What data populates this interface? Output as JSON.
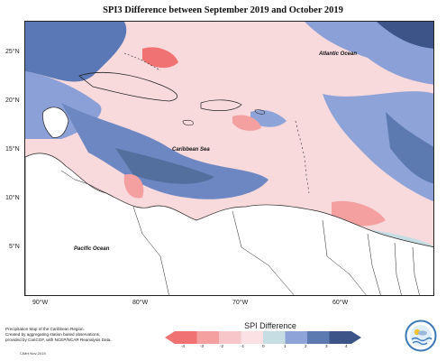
{
  "title": "SPI3 Difference between September 2019 and October 2019",
  "axes": {
    "lat_ticks": [
      "25°N",
      "20°N",
      "15°N",
      "10°N",
      "5°N"
    ],
    "lon_ticks": [
      "90°W",
      "80°W",
      "70°W",
      "60°W"
    ]
  },
  "labels": {
    "atlantic": "Atlantic Ocean",
    "caribbean": "Caribbean Sea",
    "pacific": "Pacific Ocean"
  },
  "caption": {
    "line1": "Precipitation Map of the Caribbean Region.",
    "line2": "Created by aggregating station based observations,",
    "line3": "provided by CariCOF, with NCEP/NCAR Reanalysis Data.",
    "credit": "CIMH Nov-2019"
  },
  "legend": {
    "title": "SPI Difference",
    "values": [
      "-4",
      "-3",
      "-2",
      "-1",
      "0",
      "1",
      "2",
      "3",
      "4"
    ],
    "colors": [
      "#f07272",
      "#f4a0a0",
      "#f6c6c9",
      "#fbe1e4",
      "#c6dde3",
      "#8ea4d8",
      "#5d7ab0",
      "#3c5487"
    ]
  }
}
